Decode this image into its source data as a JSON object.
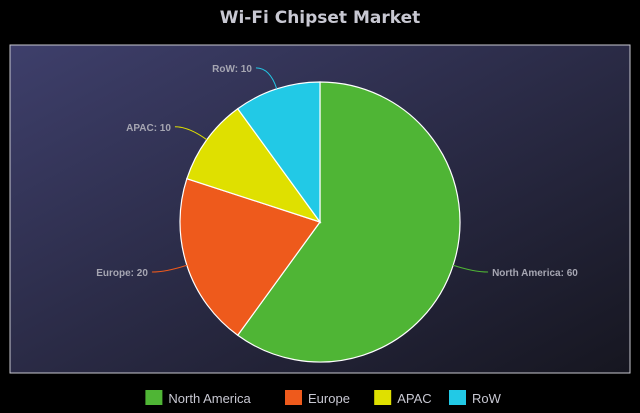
{
  "chart_data": {
    "type": "pie",
    "title": "Wi-Fi Chipset Market",
    "categories": [
      "North America",
      "Europe",
      "APAC",
      "RoW"
    ],
    "values": [
      60,
      20,
      10,
      10
    ],
    "labels": [
      "North America: 60",
      "Europe: 20",
      "APAC: 10",
      "RoW: 10"
    ],
    "colors": [
      "#4fb535",
      "#ee5a1c",
      "#dfe000",
      "#22c9e6"
    ],
    "legend": {
      "position": "bottom",
      "entries": [
        "North America",
        "Europe",
        "APAC",
        "RoW"
      ]
    }
  },
  "style": {
    "background_gradient": [
      "#3e3f6b",
      "#161620"
    ],
    "slice_border": "#ffffff"
  }
}
